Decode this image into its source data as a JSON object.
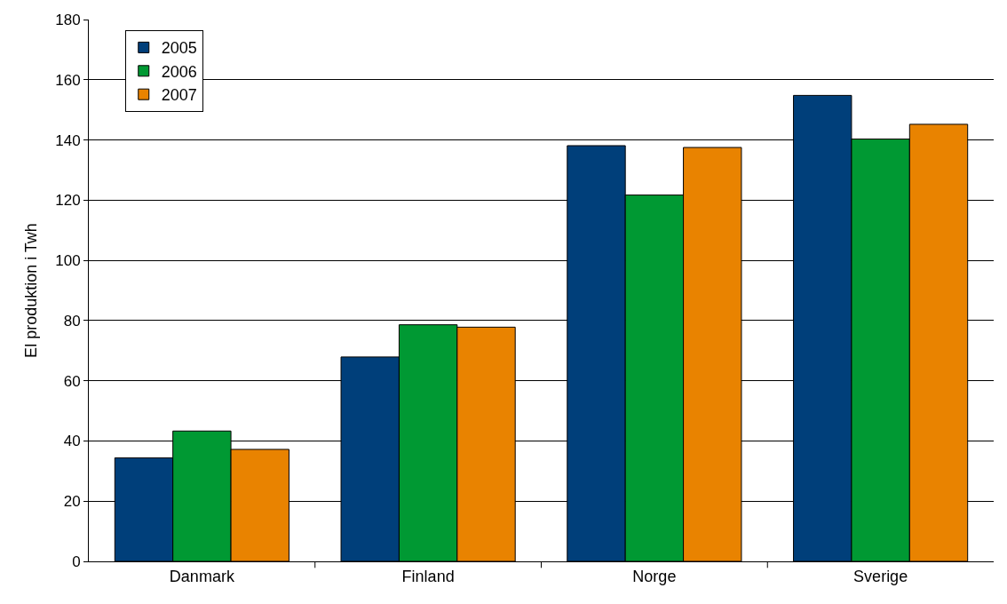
{
  "chart_data": {
    "type": "bar",
    "ylabel": "El produktion i Twh",
    "categories": [
      "Danmark",
      "Finland",
      "Norge",
      "Sverige"
    ],
    "series": [
      {
        "name": "2005",
        "color": "#003f7a",
        "values": [
          34.4,
          67.9,
          138.1,
          154.8
        ]
      },
      {
        "name": "2006",
        "color": "#009933",
        "values": [
          43.3,
          78.6,
          121.7,
          140.3
        ]
      },
      {
        "name": "2007",
        "color": "#e98300",
        "values": [
          37.2,
          77.8,
          137.5,
          145.2
        ]
      }
    ],
    "ylim": [
      0,
      180
    ],
    "yticks": [
      0,
      20,
      40,
      60,
      80,
      100,
      120,
      140,
      160,
      180
    ],
    "grid": "y",
    "legend": "top left"
  }
}
